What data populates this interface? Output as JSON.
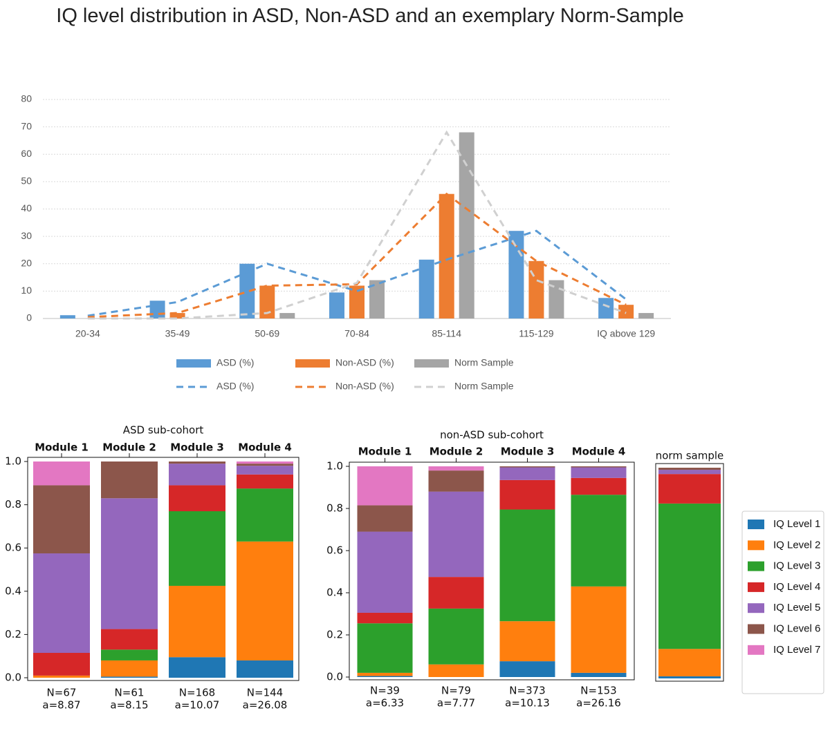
{
  "chart_data": [
    {
      "type": "bar",
      "title": "IQ level distribution in ASD, Non-ASD and an exemplary Norm-Sample",
      "categories": [
        "20-34",
        "35-49",
        "50-69",
        "70-84",
        "85-114",
        "115-129",
        "IQ above 129"
      ],
      "series": [
        {
          "name": "ASD (%)",
          "style": "bar",
          "color": "#5b9bd5",
          "values": [
            1.2,
            6.5,
            20,
            9.5,
            21.5,
            32,
            7.5
          ]
        },
        {
          "name": "Non-ASD (%)",
          "style": "bar",
          "color": "#ed7d31",
          "values": [
            0,
            2,
            12,
            12,
            45.5,
            21,
            5
          ]
        },
        {
          "name": "Norm Sample",
          "style": "bar",
          "color": "#a5a5a5",
          "values": [
            0,
            0,
            2,
            14,
            68,
            14,
            2
          ]
        },
        {
          "name": "ASD (%)",
          "style": "dashed-line",
          "color": "#5b9bd5",
          "values": [
            1,
            6,
            20,
            10,
            21.5,
            32,
            7
          ]
        },
        {
          "name": "Non-ASD (%)",
          "style": "dashed-line",
          "color": "#ed7d31",
          "values": [
            0.5,
            2,
            12,
            12.5,
            45.5,
            21,
            5
          ]
        },
        {
          "name": "Norm Sample",
          "style": "dashed-line",
          "color": "#d0d0d0",
          "values": [
            0,
            0,
            2,
            13,
            68,
            14,
            2
          ]
        }
      ],
      "ylim": [
        0,
        80
      ],
      "yticks": [
        0,
        10,
        20,
        30,
        40,
        50,
        60,
        70,
        80
      ],
      "grid": true
    },
    {
      "type": "stacked-bar",
      "title": "ASD sub-cohort",
      "categories": [
        "Module 1",
        "Module 2",
        "Module 3",
        "Module 4"
      ],
      "bottom_labels": [
        [
          "N=67",
          "a=8.87"
        ],
        [
          "N=61",
          "a=8.15"
        ],
        [
          "N=168",
          "a=10.07"
        ],
        [
          "N=144",
          "a=26.08"
        ]
      ],
      "series": [
        {
          "color": "#1f77b4",
          "values": [
            0,
            0.005,
            0.095,
            0.08
          ]
        },
        {
          "color": "#ff7f0e",
          "values": [
            0.01,
            0.075,
            0.33,
            0.55
          ]
        },
        {
          "color": "#2ca02c",
          "values": [
            0,
            0.05,
            0.345,
            0.245
          ]
        },
        {
          "color": "#d62728",
          "values": [
            0.105,
            0.095,
            0.12,
            0.065
          ]
        },
        {
          "color": "#9467bd",
          "values": [
            0.46,
            0.605,
            0.1,
            0.04
          ]
        },
        {
          "color": "#8c564b",
          "values": [
            0.315,
            0.17,
            0.01,
            0.01
          ]
        },
        {
          "color": "#e377c2",
          "values": [
            0.11,
            0,
            0,
            0.01
          ]
        }
      ],
      "ylim": [
        0,
        1
      ],
      "yticks": [
        {
          "value": 0,
          "label": "0.0"
        },
        0.2,
        0.4,
        0.6,
        0.8,
        {
          "value": 1,
          "label": "1.0"
        }
      ]
    },
    {
      "type": "stacked-bar",
      "title": "non-ASD sub-cohort",
      "categories": [
        "Module 1",
        "Module 2",
        "Module 3",
        "Module 4"
      ],
      "bottom_labels": [
        [
          "N=39",
          "a=6.33"
        ],
        [
          "N=79",
          "a=7.77"
        ],
        [
          "N=373",
          "a=10.13"
        ],
        [
          "N=153",
          "a=26.16"
        ]
      ],
      "series": [
        {
          "color": "#1f77b4",
          "values": [
            0.005,
            0,
            0.075,
            0.02
          ]
        },
        {
          "color": "#ff7f0e",
          "values": [
            0.015,
            0.06,
            0.19,
            0.41
          ]
        },
        {
          "color": "#2ca02c",
          "values": [
            0.235,
            0.265,
            0.53,
            0.435
          ]
        },
        {
          "color": "#d62728",
          "values": [
            0.05,
            0.15,
            0.14,
            0.08
          ]
        },
        {
          "color": "#9467bd",
          "values": [
            0.385,
            0.405,
            0.06,
            0.05
          ]
        },
        {
          "color": "#8c564b",
          "values": [
            0.125,
            0.1,
            0.005,
            0.005
          ]
        },
        {
          "color": "#e377c2",
          "values": [
            0.185,
            0.02,
            0,
            0
          ]
        }
      ],
      "ylim": [
        0,
        1
      ],
      "yticks": [
        {
          "value": 0,
          "label": "0.0"
        },
        0.2,
        0.4,
        0.6,
        0.8,
        {
          "value": 1,
          "label": "1.0"
        }
      ]
    },
    {
      "type": "stacked-bar",
      "title": "norm sample",
      "categories": [
        null
      ],
      "series": [
        {
          "color": "#1f77b4",
          "values": [
            0.01
          ]
        },
        {
          "color": "#ff7f0e",
          "values": [
            0.13
          ]
        },
        {
          "color": "#2ca02c",
          "values": [
            0.69
          ]
        },
        {
          "color": "#d62728",
          "values": [
            0.14
          ]
        },
        {
          "color": "#9467bd",
          "values": [
            0.02
          ]
        },
        {
          "color": "#8c564b",
          "values": [
            0.01
          ]
        },
        {
          "color": "#e377c2",
          "values": [
            0
          ]
        }
      ],
      "ylim": [
        0,
        1
      ]
    }
  ],
  "legend": {
    "items": [
      {
        "name": "IQ Level 1",
        "color": "#1f77b4"
      },
      {
        "name": "IQ Level 2",
        "color": "#ff7f0e"
      },
      {
        "name": "IQ Level 3",
        "color": "#2ca02c"
      },
      {
        "name": "IQ Level 4",
        "color": "#d62728"
      },
      {
        "name": "IQ Level 5",
        "color": "#9467bd"
      },
      {
        "name": "IQ Level 6",
        "color": "#8c564b"
      },
      {
        "name": "IQ Level 7",
        "color": "#e377c2"
      }
    ]
  }
}
